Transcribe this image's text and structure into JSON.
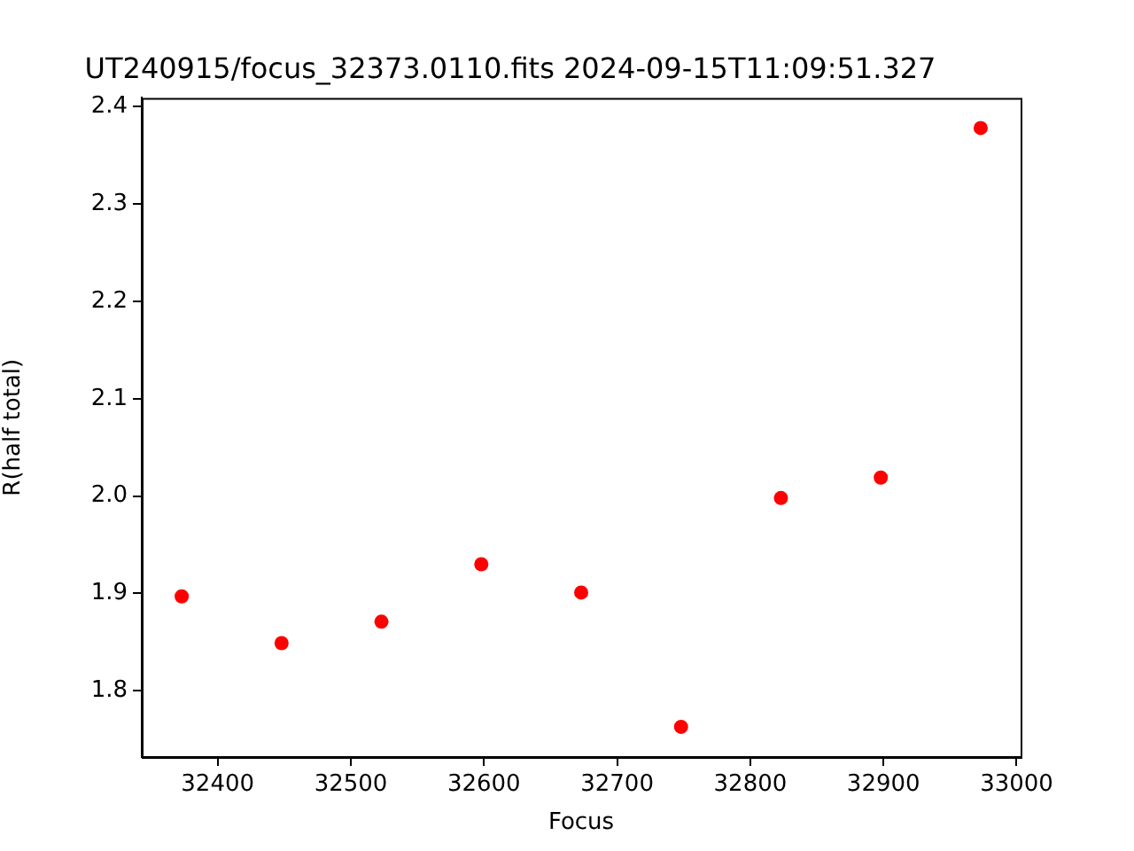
{
  "chart_data": {
    "type": "scatter",
    "title": "UT240915/focus_32373.0110.fits 2024-09-15T11:09:51.327",
    "xlabel": "Focus",
    "ylabel": "R(half total)",
    "x": [
      32373,
      32448,
      32523,
      32598,
      32673,
      32748,
      32823,
      32898,
      32973
    ],
    "series": [
      {
        "color": "#ff0000",
        "values": [
          1.897,
          1.849,
          1.871,
          1.93,
          1.901,
          1.763,
          1.998,
          2.019,
          2.378
        ]
      }
    ],
    "xlim": [
      32343,
      33003
    ],
    "xticks": [
      32400,
      32500,
      32600,
      32700,
      32800,
      32900,
      33000
    ],
    "ylim": [
      1.732,
      2.409
    ],
    "yticks": [
      1.8,
      1.9,
      {
        "value": 2.0,
        "label": "2.0"
      },
      2.1,
      2.2,
      2.3,
      2.4
    ],
    "grid": false,
    "legend": false,
    "marker": "circle"
  }
}
